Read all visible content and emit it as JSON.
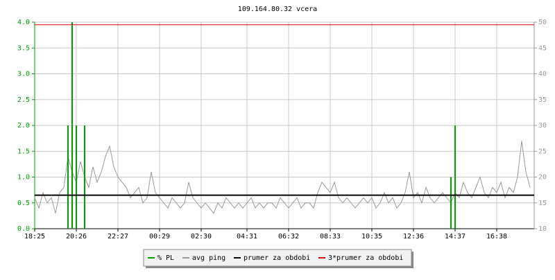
{
  "chart_data": {
    "type": "line",
    "title": "109.164.80.32 vcera",
    "categories": [
      "18:25",
      null,
      null,
      null,
      null,
      null,
      null,
      null,
      null,
      null,
      "20:26",
      null,
      null,
      null,
      null,
      null,
      null,
      null,
      null,
      null,
      "22:27",
      null,
      null,
      null,
      null,
      null,
      null,
      null,
      null,
      null,
      "00:29",
      null,
      null,
      null,
      null,
      null,
      null,
      null,
      null,
      null,
      "02:30",
      null,
      null,
      null,
      null,
      null,
      null,
      null,
      null,
      null,
      null,
      "04:31",
      null,
      null,
      null,
      null,
      null,
      null,
      null,
      null,
      null,
      "06:32",
      null,
      null,
      null,
      null,
      null,
      null,
      null,
      null,
      null,
      "08:33",
      null,
      null,
      null,
      null,
      null,
      null,
      null,
      null,
      null,
      "10:35",
      null,
      null,
      null,
      null,
      null,
      null,
      null,
      null,
      null,
      "12:36",
      null,
      null,
      null,
      null,
      null,
      null,
      null,
      null,
      null,
      "14:37",
      null,
      null,
      null,
      null,
      null,
      null,
      null,
      null,
      null,
      "16:38",
      null,
      null,
      null,
      null,
      null,
      null,
      null,
      null
    ],
    "ylim": [
      0,
      4
    ],
    "yticks": [
      {
        "value": 0,
        "label": "0.0"
      },
      0.5,
      {
        "value": 1,
        "label": "1.0"
      },
      1.5,
      {
        "value": 2,
        "label": "2.0"
      },
      2.5,
      {
        "value": 3,
        "label": "3.0"
      },
      3.5,
      {
        "value": 4,
        "label": "4.0"
      }
    ],
    "y2lim": [
      10,
      50
    ],
    "y2ticks": [
      10,
      15,
      20,
      25,
      30,
      35,
      40,
      45,
      50
    ],
    "grid": true,
    "legend": "bottom",
    "series": [
      {
        "name": "% PL",
        "color": "#00a000",
        "type": "impulse",
        "axis": "y",
        "values": [
          0,
          0,
          0,
          0,
          0,
          0,
          0,
          0,
          2,
          4,
          2,
          0,
          2,
          0,
          0,
          0,
          0,
          0,
          0,
          0,
          0,
          0,
          0,
          0,
          0,
          0,
          0,
          0,
          0,
          0,
          0,
          0,
          0,
          0,
          0,
          0,
          0,
          0,
          0,
          0,
          0,
          0,
          0,
          0,
          0,
          0,
          0,
          0,
          0,
          0,
          0,
          0,
          0,
          0,
          0,
          0,
          0,
          0,
          0,
          0,
          0,
          0,
          0,
          0,
          0,
          0,
          0,
          0,
          0,
          0,
          0,
          0,
          0,
          0,
          0,
          0,
          0,
          0,
          0,
          0,
          0,
          0,
          0,
          0,
          0,
          0,
          0,
          0,
          0,
          0,
          0,
          0,
          0,
          0,
          0,
          0,
          0,
          0,
          0,
          0,
          1,
          2,
          0,
          0,
          0,
          0,
          0,
          0,
          0,
          0,
          0,
          0,
          0,
          0,
          0,
          0,
          0,
          0,
          0,
          0
        ]
      },
      {
        "name": "avg ping",
        "color": "#999999",
        "type": "line",
        "axis": "y2",
        "values": [
          16,
          14,
          17,
          15,
          16,
          13,
          17,
          18,
          24,
          21,
          19,
          23,
          20,
          18,
          22,
          19,
          21,
          24,
          26,
          22,
          20,
          19,
          18,
          16,
          17,
          18,
          15,
          16,
          21,
          17,
          16,
          15,
          14,
          16,
          15,
          14,
          15,
          19,
          16,
          15,
          14,
          15,
          14,
          13,
          15,
          14,
          16,
          15,
          14,
          15,
          14,
          15,
          16,
          14,
          15,
          14,
          15,
          15,
          14,
          16,
          15,
          14,
          15,
          16,
          14,
          15,
          15,
          14,
          17,
          19,
          18,
          17,
          19,
          16,
          15,
          16,
          15,
          14,
          15,
          16,
          15,
          16,
          14,
          15,
          17,
          15,
          16,
          14,
          15,
          17,
          21,
          16,
          17,
          15,
          18,
          16,
          15,
          16,
          17,
          16,
          15,
          17,
          16,
          19,
          17,
          16,
          18,
          20,
          17,
          16,
          18,
          17,
          19,
          16,
          18,
          17,
          20,
          27,
          21,
          18
        ]
      },
      {
        "name": "prumer za obdobi",
        "color": "#000000",
        "type": "hline",
        "axis": "y2",
        "value": 16.5
      },
      {
        "name": "3*prumer za obdobi",
        "color": "#e00000",
        "type": "hline",
        "axis": "y2",
        "value": 49.5
      }
    ]
  }
}
